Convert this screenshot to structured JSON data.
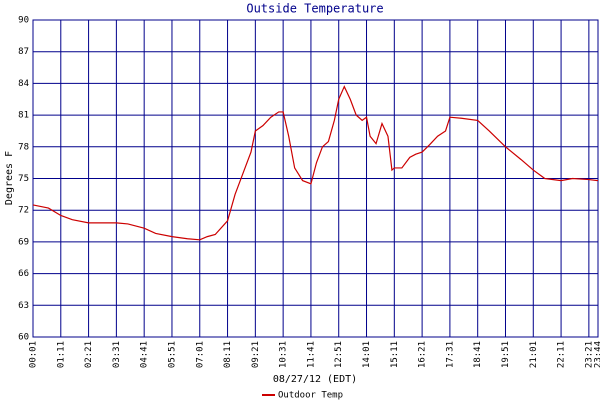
{
  "chart_data": {
    "type": "line",
    "title": "Outside Temperature",
    "xlabel": "08/27/12 (EDT)",
    "ylabel": "Degrees F",
    "ylim": [
      60,
      90
    ],
    "yticks": [
      60,
      63,
      66,
      69,
      72,
      75,
      78,
      81,
      84,
      87,
      90
    ],
    "xlim": [
      1,
      1424
    ],
    "xticks": [
      {
        "value": 1,
        "label": "00:01"
      },
      {
        "value": 71,
        "label": "01:11"
      },
      {
        "value": 141,
        "label": "02:21"
      },
      {
        "value": 211,
        "label": "03:31"
      },
      {
        "value": 281,
        "label": "04:41"
      },
      {
        "value": 351,
        "label": "05:51"
      },
      {
        "value": 421,
        "label": "07:01"
      },
      {
        "value": 491,
        "label": "08:11"
      },
      {
        "value": 561,
        "label": "09:21"
      },
      {
        "value": 631,
        "label": "10:31"
      },
      {
        "value": 701,
        "label": "11:41"
      },
      {
        "value": 771,
        "label": "12:51"
      },
      {
        "value": 841,
        "label": "14:01"
      },
      {
        "value": 911,
        "label": "15:11"
      },
      {
        "value": 981,
        "label": "16:21"
      },
      {
        "value": 1051,
        "label": "17:31"
      },
      {
        "value": 1121,
        "label": "18:41"
      },
      {
        "value": 1191,
        "label": "19:51"
      },
      {
        "value": 1261,
        "label": "21:01"
      },
      {
        "value": 1331,
        "label": "22:11"
      },
      {
        "value": 1401,
        "label": "23:21"
      },
      {
        "value": 1424,
        "label": "23:44"
      }
    ],
    "grid": true,
    "x": [
      1,
      40,
      71,
      100,
      141,
      180,
      211,
      240,
      281,
      310,
      351,
      390,
      421,
      440,
      460,
      491,
      510,
      530,
      550,
      561,
      580,
      600,
      620,
      631,
      645,
      660,
      680,
      701,
      715,
      730,
      745,
      760,
      771,
      785,
      800,
      815,
      830,
      841,
      850,
      865,
      880,
      895,
      905,
      911,
      930,
      950,
      965,
      981,
      1000,
      1020,
      1040,
      1051,
      1080,
      1121,
      1150,
      1191,
      1230,
      1261,
      1290,
      1331,
      1360,
      1401,
      1424
    ],
    "series": [
      {
        "name": "Outdoor Temp",
        "color": "#cc0000",
        "values": [
          72.5,
          72.2,
          71.5,
          71.1,
          70.8,
          70.8,
          70.8,
          70.7,
          70.3,
          69.8,
          69.5,
          69.3,
          69.2,
          69.5,
          69.7,
          71,
          73.5,
          75.5,
          77.5,
          79.5,
          80,
          80.8,
          81.3,
          81.3,
          79,
          76,
          74.8,
          74.5,
          76.5,
          78,
          78.5,
          80.5,
          82.5,
          83.7,
          82.5,
          81,
          80.5,
          80.8,
          79,
          78.3,
          80.2,
          79,
          75.8,
          76,
          76,
          77,
          77.3,
          77.5,
          78.2,
          79,
          79.5,
          80.8,
          80.7,
          80.5,
          79.5,
          78,
          76.8,
          75.8,
          75,
          74.8,
          75,
          74.9,
          74.8
        ]
      }
    ]
  }
}
